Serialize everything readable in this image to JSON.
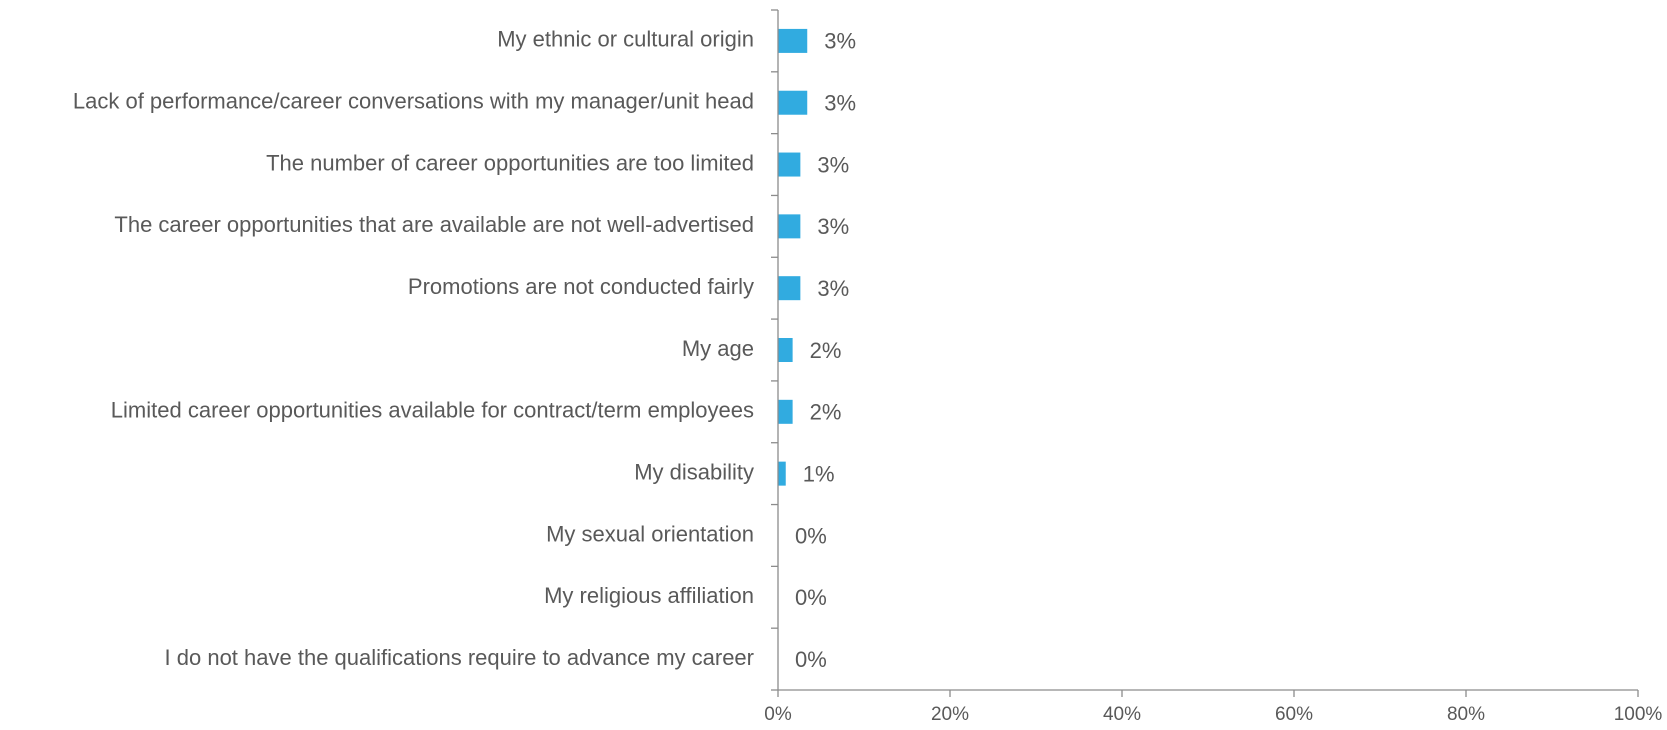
{
  "chart_data": {
    "type": "bar",
    "orientation": "horizontal",
    "categories": [
      "My ethnic or cultural origin",
      "Lack of performance/career conversations with my manager/unit head",
      "The number of career opportunities are too limited",
      "The career opportunities that are available are not well-advertised",
      "Promotions are not conducted fairly",
      "My age",
      "Limited career opportunities available for contract/term employees",
      "My disability",
      "My sexual orientation",
      "My religious affiliation",
      "I do not have the qualifications require to advance my career"
    ],
    "values": [
      3.4,
      3.4,
      2.6,
      2.6,
      2.6,
      1.7,
      1.7,
      0.9,
      0,
      0,
      0
    ],
    "data_labels": [
      "3%",
      "3%",
      "3%",
      "3%",
      "3%",
      "2%",
      "2%",
      "1%",
      "0%",
      "0%",
      "0%"
    ],
    "x_ticks": [
      "0%",
      "20%",
      "40%",
      "60%",
      "80%",
      "100%"
    ],
    "xlim": [
      0,
      100
    ],
    "title": "",
    "xlabel": "",
    "ylabel": "",
    "bar_color": "#31ABE0",
    "grid": false,
    "legend": "none"
  }
}
